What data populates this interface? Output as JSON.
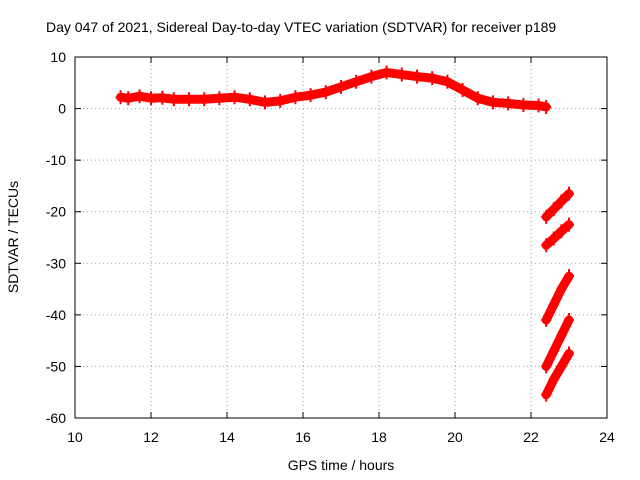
{
  "chart_data": {
    "type": "scatter",
    "title": "Day 047 of 2021, Sidereal Day-to-day VTEC variation (SDTVAR) for receiver p189",
    "xlabel": "GPS time / hours",
    "ylabel": "SDTVAR / TECUs",
    "xlim": [
      10,
      24
    ],
    "ylim": [
      -60,
      10
    ],
    "xticks": [
      "10",
      "12",
      "14",
      "16",
      "18",
      "20",
      "22",
      "24"
    ],
    "yticks": [
      "10",
      "0",
      "-10",
      "-20",
      "-30",
      "-40",
      "-50",
      "-60"
    ],
    "grid": true,
    "legend": "none",
    "series_color": "#ff0000",
    "series": [
      {
        "name": "main trace",
        "x": [
          11.2,
          11.4,
          11.7,
          12.0,
          12.3,
          12.6,
          13.0,
          13.4,
          13.8,
          14.2,
          14.6,
          15.0,
          15.4,
          15.8,
          16.2,
          16.6,
          17.0,
          17.4,
          17.8,
          18.2,
          18.6,
          19.0,
          19.4,
          19.8,
          20.2,
          20.6,
          21.0,
          21.4,
          21.8,
          22.2,
          22.4
        ],
        "y": [
          2.2,
          2.0,
          2.4,
          2.0,
          2.1,
          1.8,
          1.8,
          1.8,
          2.0,
          2.2,
          1.8,
          1.2,
          1.5,
          2.2,
          2.6,
          3.2,
          4.2,
          5.2,
          6.2,
          7.0,
          6.6,
          6.2,
          5.9,
          5.2,
          3.6,
          2.0,
          1.2,
          1.0,
          0.7,
          0.6,
          0.3
        ]
      },
      {
        "name": "end segment 1",
        "x": [
          22.4,
          22.6,
          22.8,
          23.0
        ],
        "y": [
          -21,
          -19.5,
          -18,
          -16.5
        ]
      },
      {
        "name": "end segment 2",
        "x": [
          22.4,
          22.6,
          22.8,
          23.0
        ],
        "y": [
          -26.5,
          -25.2,
          -23.8,
          -22.5
        ]
      },
      {
        "name": "end segment 3",
        "x": [
          22.4,
          22.6,
          22.8,
          23.0
        ],
        "y": [
          -41,
          -38,
          -35,
          -32.5
        ]
      },
      {
        "name": "end segment 4",
        "x": [
          22.4,
          22.6,
          22.8,
          23.0
        ],
        "y": [
          -50,
          -47,
          -44,
          -41
        ]
      },
      {
        "name": "end segment 5",
        "x": [
          22.4,
          22.6,
          22.8,
          23.0
        ],
        "y": [
          -55.5,
          -52.5,
          -50,
          -47.5
        ]
      }
    ]
  }
}
